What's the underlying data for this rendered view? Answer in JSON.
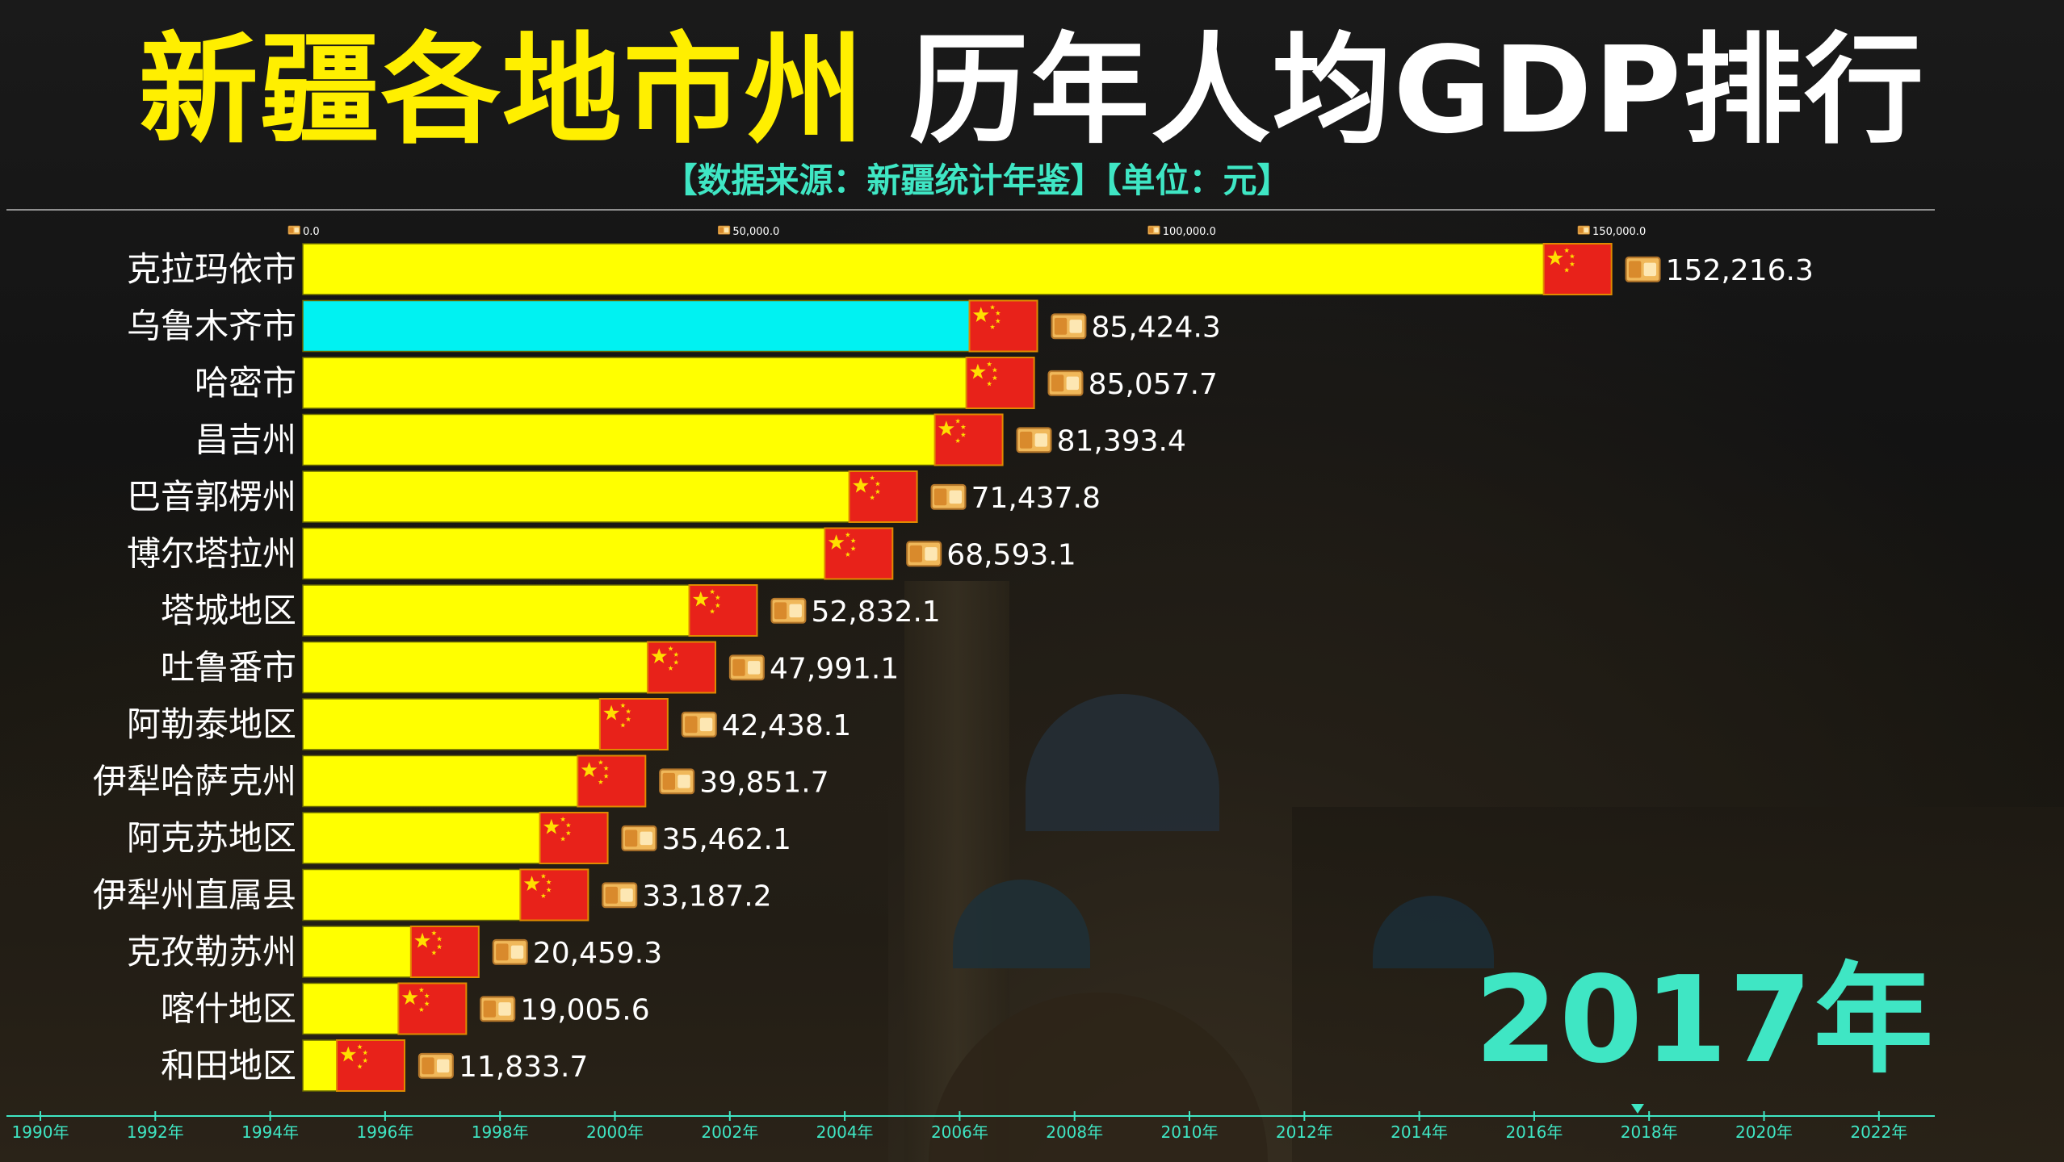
{
  "title_part1": "新疆各地市州",
  "title_part2": " 历年人均GDP排行",
  "source": "【数据来源：新疆统计年鉴】【单位：元】",
  "year_label": "2017年",
  "colors": {
    "bar_default": "#ffff00",
    "bar_highlight": "#00f2f2",
    "flag_red": "#e8221a",
    "flag_star": "#ffde00",
    "accent": "#3fe6c4"
  },
  "icons": {
    "bar_end": "china-flag-icon",
    "value_prefix": "money-icon"
  },
  "chart_data": {
    "type": "bar",
    "orientation": "horizontal",
    "xlim": [
      0,
      160000
    ],
    "x_ticks": [
      0,
      50000,
      100000,
      150000
    ],
    "x_tick_labels": [
      "0.0",
      "50,000.0",
      "100,000.0",
      "150,000.0"
    ],
    "highlight_category": "乌鲁木齐市",
    "categories": [
      "克拉玛依市",
      "乌鲁木齐市",
      "哈密市",
      "昌吉州",
      "巴音郭楞州",
      "博尔塔拉州",
      "塔城地区",
      "吐鲁番市",
      "阿勒泰地区",
      "伊犁哈萨克州",
      "阿克苏地区",
      "伊犁州直属县",
      "克孜勒苏州",
      "喀什地区",
      "和田地区"
    ],
    "values": [
      152216.3,
      85424.3,
      85057.7,
      81393.4,
      71437.8,
      68593.1,
      52832.1,
      47991.1,
      42438.1,
      39851.7,
      35462.1,
      33187.2,
      20459.3,
      19005.6,
      11833.7
    ],
    "value_labels": [
      "152,216.3",
      "85,424.3",
      "85,057.7",
      "81,393.4",
      "71,437.8",
      "68,593.1",
      "52,832.1",
      "47,991.1",
      "42,438.1",
      "39,851.7",
      "35,462.1",
      "33,187.2",
      "20,459.3",
      "19,005.6",
      "11,833.7"
    ],
    "timeline": {
      "years": [
        "1990年",
        "1992年",
        "1994年",
        "1996年",
        "1998年",
        "2000年",
        "2002年",
        "2004年",
        "2006年",
        "2008年",
        "2010年",
        "2012年",
        "2014年",
        "2016年",
        "2018年",
        "2020年",
        "2022年"
      ],
      "current": 2017.8
    }
  }
}
